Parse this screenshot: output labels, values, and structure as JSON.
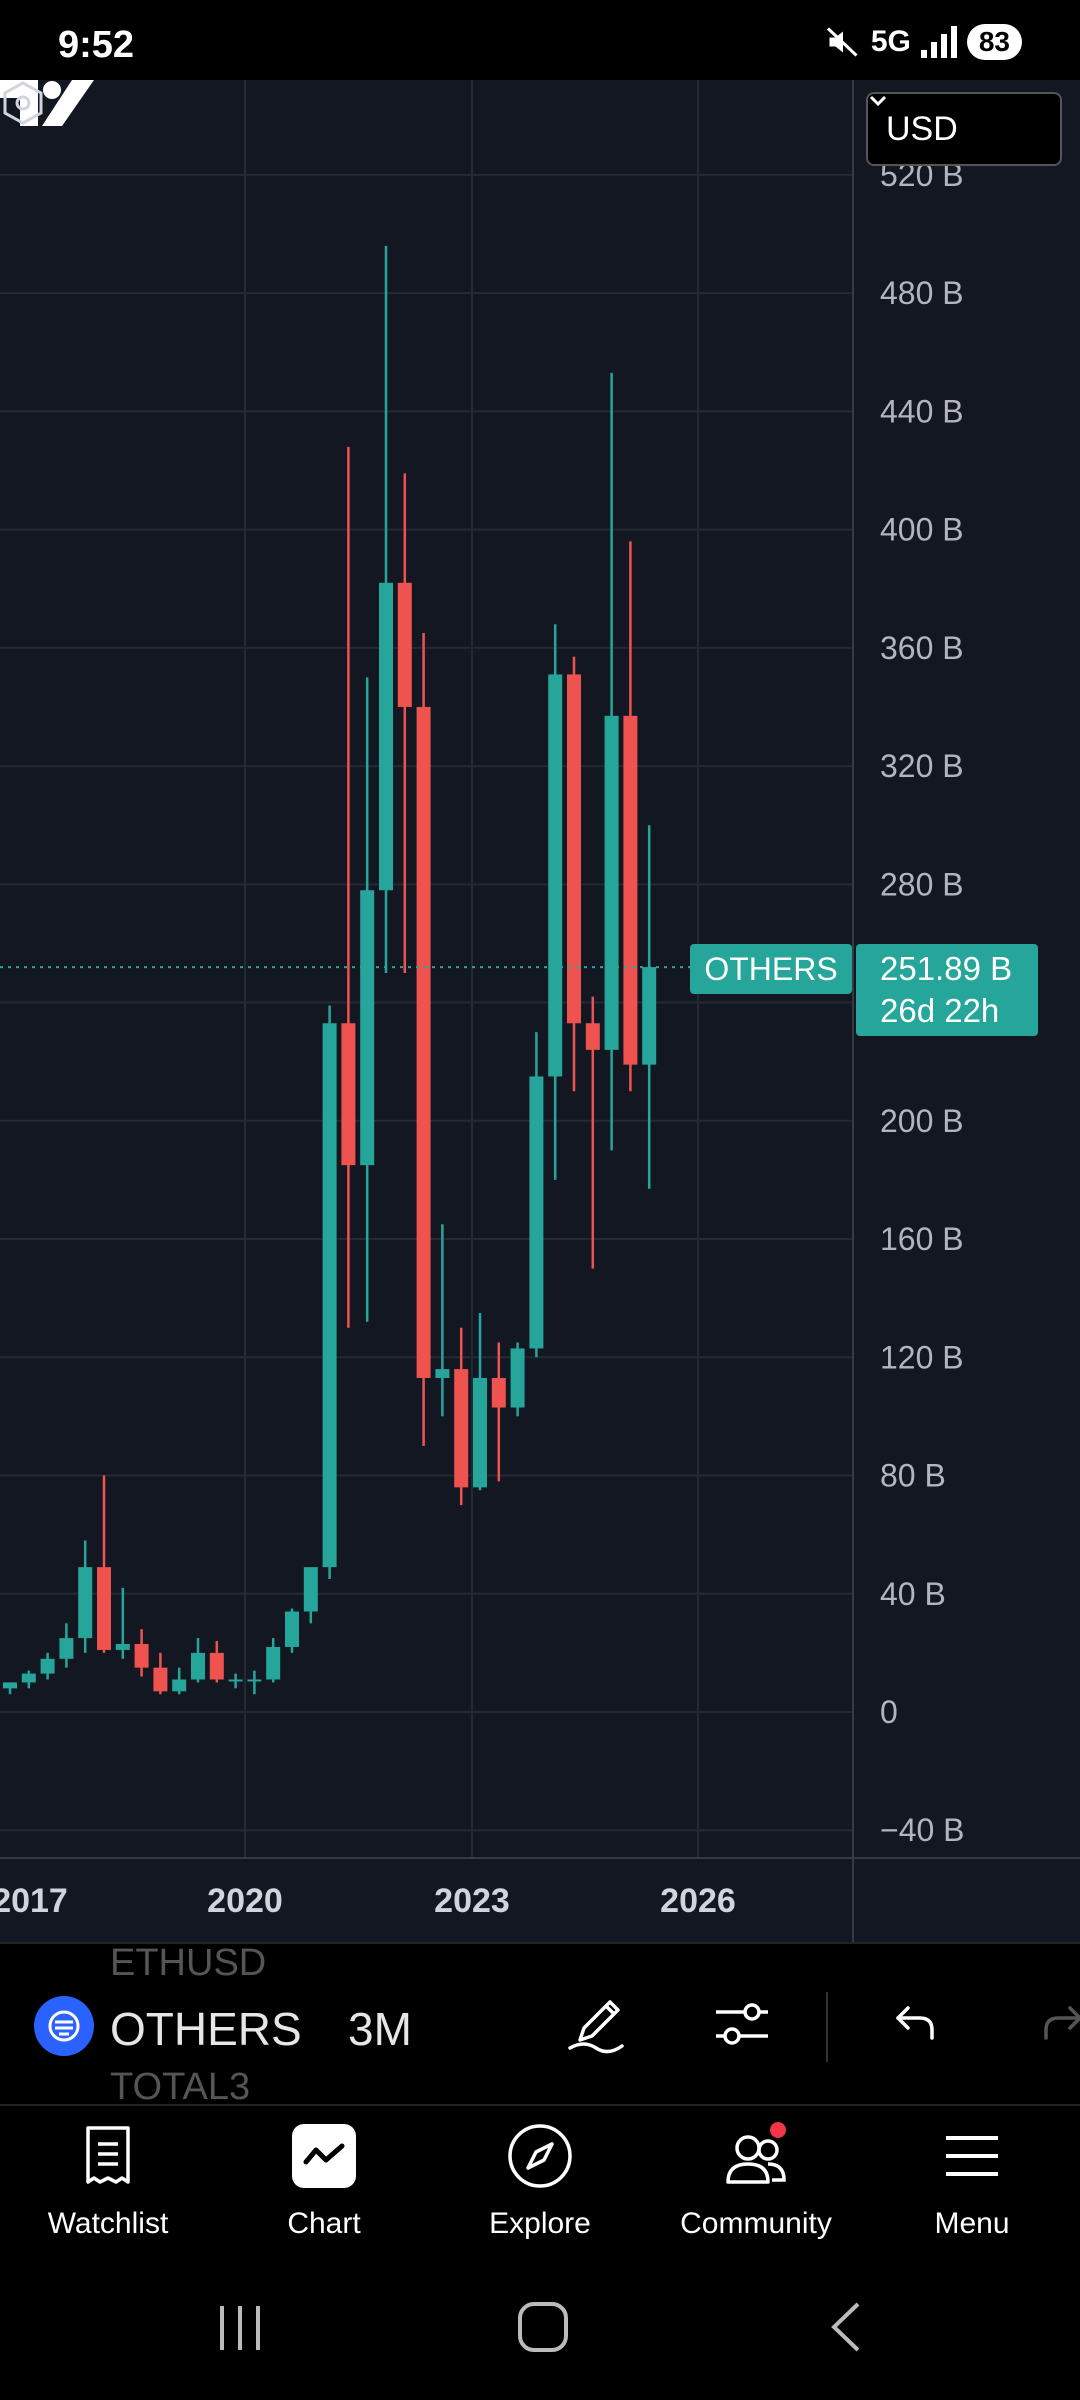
{
  "status": {
    "time": "9:52",
    "network": "5G",
    "battery": "83"
  },
  "chart": {
    "currency": "USD",
    "price_labels": [
      "520 B",
      "480 B",
      "440 B",
      "400 B",
      "360 B",
      "320 B",
      "280 B",
      "200 B",
      "160 B",
      "120 B",
      "80 B",
      "40 B",
      "0",
      "−40 B"
    ],
    "time_labels": [
      "2017",
      "2020",
      "2023",
      "2026"
    ],
    "symbol_tag": "OTHERS",
    "last_price": "251.89 B",
    "countdown": "26d 22h",
    "colors": {
      "up": "#26a69a",
      "down": "#ef5350",
      "background": "#131722"
    }
  },
  "chart_data": {
    "type": "candlestick",
    "unit": "B USD",
    "ylim": [
      -40,
      540
    ],
    "candles": [
      {
        "o": 8,
        "h": 10,
        "l": 6,
        "c": 10
      },
      {
        "o": 10,
        "h": 14,
        "l": 8,
        "c": 13
      },
      {
        "o": 13,
        "h": 20,
        "l": 11,
        "c": 18
      },
      {
        "o": 18,
        "h": 30,
        "l": 15,
        "c": 25
      },
      {
        "o": 25,
        "h": 58,
        "l": 20,
        "c": 49
      },
      {
        "o": 49,
        "h": 80,
        "l": 20,
        "c": 21
      },
      {
        "o": 21,
        "h": 42,
        "l": 18,
        "c": 23
      },
      {
        "o": 23,
        "h": 28,
        "l": 12,
        "c": 15
      },
      {
        "o": 15,
        "h": 20,
        "l": 6,
        "c": 7
      },
      {
        "o": 7,
        "h": 15,
        "l": 6,
        "c": 11
      },
      {
        "o": 11,
        "h": 25,
        "l": 10,
        "c": 20
      },
      {
        "o": 20,
        "h": 24,
        "l": 10,
        "c": 11
      },
      {
        "o": 11,
        "h": 13,
        "l": 8,
        "c": 11
      },
      {
        "o": 11,
        "h": 14,
        "l": 6,
        "c": 11
      },
      {
        "o": 11,
        "h": 25,
        "l": 10,
        "c": 22
      },
      {
        "o": 22,
        "h": 35,
        "l": 20,
        "c": 34
      },
      {
        "o": 34,
        "h": 47,
        "l": 30,
        "c": 49
      },
      {
        "o": 49,
        "h": 239,
        "l": 45,
        "c": 233
      },
      {
        "o": 233,
        "h": 428,
        "l": 130,
        "c": 185
      },
      {
        "o": 185,
        "h": 350,
        "l": 132,
        "c": 278
      },
      {
        "o": 278,
        "h": 496,
        "l": 250,
        "c": 382
      },
      {
        "o": 382,
        "h": 419,
        "l": 250,
        "c": 340
      },
      {
        "o": 340,
        "h": 365,
        "l": 90,
        "c": 113
      },
      {
        "o": 113,
        "h": 165,
        "l": 100,
        "c": 116
      },
      {
        "o": 116,
        "h": 130,
        "l": 70,
        "c": 76
      },
      {
        "o": 76,
        "h": 135,
        "l": 75,
        "c": 113
      },
      {
        "o": 113,
        "h": 125,
        "l": 78,
        "c": 103
      },
      {
        "o": 103,
        "h": 125,
        "l": 100,
        "c": 123
      },
      {
        "o": 123,
        "h": 230,
        "l": 120,
        "c": 215
      },
      {
        "o": 215,
        "h": 368,
        "l": 180,
        "c": 351
      },
      {
        "o": 351,
        "h": 357,
        "l": 210,
        "c": 233
      },
      {
        "o": 233,
        "h": 242,
        "l": 150,
        "c": 224
      },
      {
        "o": 224,
        "h": 453,
        "l": 190,
        "c": 337
      },
      {
        "o": 337,
        "h": 396,
        "l": 210,
        "c": 219
      },
      {
        "o": 219,
        "h": 300,
        "l": 177,
        "c": 252
      }
    ]
  },
  "toolbar": {
    "ghost_above": "ETHUSD",
    "symbol": "OTHERS",
    "ghost_below": "TOTAL3",
    "interval": "3M"
  },
  "nav": {
    "items": [
      {
        "label": "Watchlist",
        "icon": "watchlist-icon"
      },
      {
        "label": "Chart",
        "icon": "chart-icon"
      },
      {
        "label": "Explore",
        "icon": "compass-icon"
      },
      {
        "label": "Community",
        "icon": "community-icon"
      },
      {
        "label": "Menu",
        "icon": "menu-icon"
      }
    ]
  }
}
